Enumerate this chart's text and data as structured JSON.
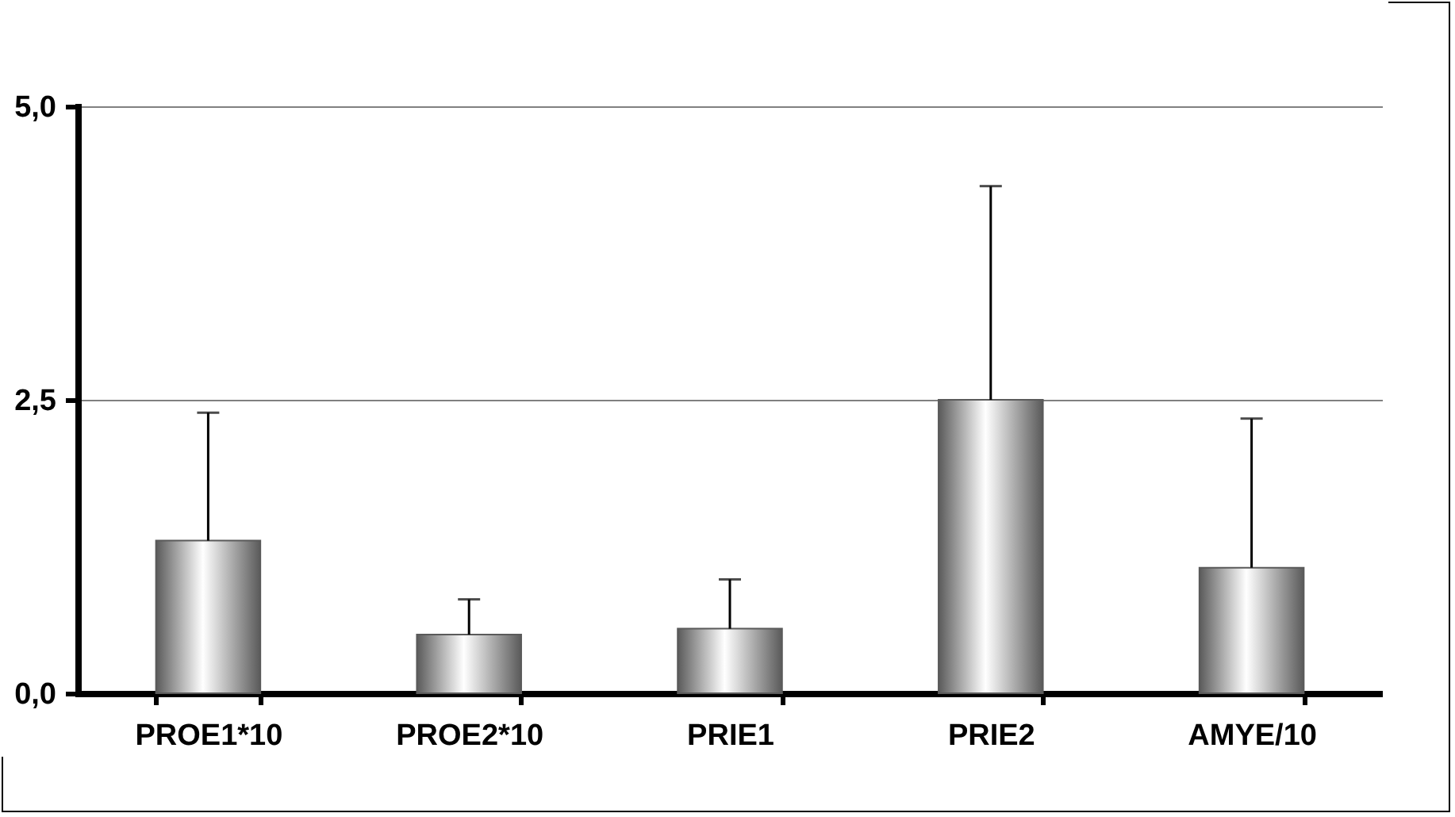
{
  "chart_data": {
    "type": "bar",
    "categories": [
      "PROE1*10",
      "PROE2*10",
      "PRIE1",
      "PRIE2",
      "AMYE/10"
    ],
    "values": [
      1.3,
      0.5,
      0.55,
      2.5,
      1.07
    ],
    "errors": [
      [
        1.3,
        2.39
      ],
      [
        0.5,
        0.8
      ],
      [
        0.55,
        0.97
      ],
      [
        2.5,
        4.32
      ],
      [
        1.07,
        2.34
      ]
    ],
    "color": "#5a5a5a",
    "ylim": [
      0,
      5
    ],
    "yticks": [
      {
        "value": 0,
        "label": "0,0"
      },
      {
        "value": 2.5,
        "label": "2,5"
      },
      {
        "value": 5,
        "label": "5,0"
      }
    ],
    "grid": "y"
  }
}
